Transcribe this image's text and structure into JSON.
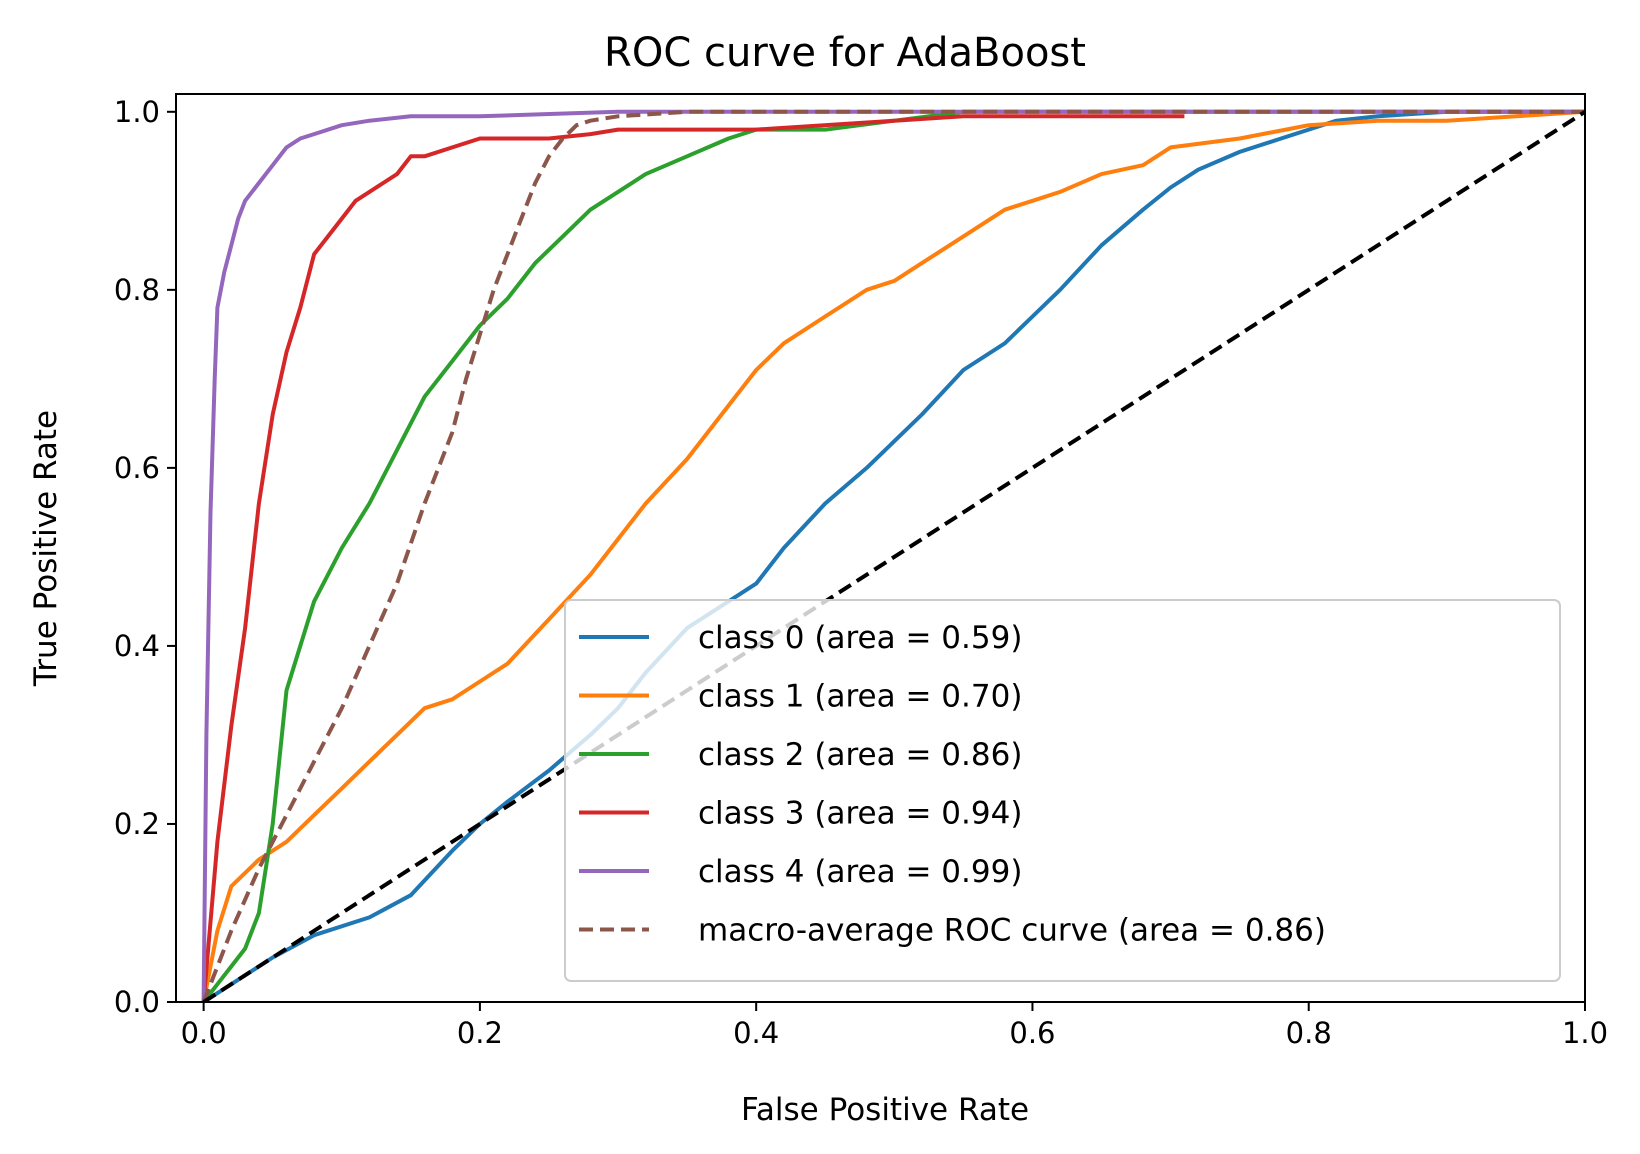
{
  "chart_data": {
    "type": "line",
    "title": "ROC curve for AdaBoost",
    "xlabel": "False Positive Rate",
    "ylabel": "True Positive Rate",
    "xlim": [
      -0.02,
      1.0
    ],
    "ylim": [
      0.0,
      1.02
    ],
    "xticks": [
      "0.0",
      "0.2",
      "0.4",
      "0.6",
      "0.8",
      "1.0"
    ],
    "yticks": [
      "0.0",
      "0.2",
      "0.4",
      "0.6",
      "0.8",
      "1.0"
    ],
    "grid": false,
    "legend_position": "lower-right",
    "series": [
      {
        "name": "class 0 (area = 0.59)",
        "color": "#1f77b4",
        "style": "solid",
        "x": [
          0.0,
          0.02,
          0.05,
          0.08,
          0.12,
          0.15,
          0.18,
          0.2,
          0.22,
          0.25,
          0.28,
          0.3,
          0.32,
          0.35,
          0.38,
          0.4,
          0.42,
          0.45,
          0.48,
          0.5,
          0.52,
          0.55,
          0.58,
          0.6,
          0.62,
          0.65,
          0.68,
          0.7,
          0.72,
          0.75,
          0.78,
          0.8,
          0.82,
          0.85,
          0.9,
          0.95,
          1.0
        ],
        "y": [
          0.0,
          0.02,
          0.05,
          0.075,
          0.095,
          0.12,
          0.17,
          0.2,
          0.225,
          0.26,
          0.3,
          0.33,
          0.37,
          0.42,
          0.45,
          0.47,
          0.51,
          0.56,
          0.6,
          0.63,
          0.66,
          0.71,
          0.74,
          0.77,
          0.8,
          0.85,
          0.89,
          0.915,
          0.935,
          0.955,
          0.97,
          0.98,
          0.99,
          0.995,
          1.0,
          1.0,
          1.0
        ]
      },
      {
        "name": "class 1 (area = 0.70)",
        "color": "#ff7f0e",
        "style": "solid",
        "x": [
          0.0,
          0.01,
          0.02,
          0.04,
          0.06,
          0.08,
          0.1,
          0.12,
          0.14,
          0.16,
          0.18,
          0.2,
          0.22,
          0.25,
          0.28,
          0.3,
          0.32,
          0.35,
          0.38,
          0.4,
          0.42,
          0.45,
          0.48,
          0.5,
          0.52,
          0.55,
          0.58,
          0.6,
          0.62,
          0.65,
          0.68,
          0.7,
          0.75,
          0.8,
          0.85,
          0.9,
          0.95,
          1.0
        ],
        "y": [
          0.0,
          0.08,
          0.13,
          0.16,
          0.18,
          0.21,
          0.24,
          0.27,
          0.3,
          0.33,
          0.34,
          0.36,
          0.38,
          0.43,
          0.48,
          0.52,
          0.56,
          0.61,
          0.67,
          0.71,
          0.74,
          0.77,
          0.8,
          0.81,
          0.83,
          0.86,
          0.89,
          0.9,
          0.91,
          0.93,
          0.94,
          0.96,
          0.97,
          0.985,
          0.99,
          0.99,
          0.995,
          1.0
        ]
      },
      {
        "name": "class 2 (area = 0.86)",
        "color": "#2ca02c",
        "style": "solid",
        "x": [
          0.0,
          0.01,
          0.02,
          0.03,
          0.04,
          0.05,
          0.06,
          0.07,
          0.08,
          0.1,
          0.12,
          0.14,
          0.16,
          0.18,
          0.2,
          0.22,
          0.24,
          0.26,
          0.28,
          0.3,
          0.32,
          0.35,
          0.38,
          0.4,
          0.45,
          0.5,
          0.55,
          0.6,
          0.7,
          0.8,
          1.0
        ],
        "y": [
          0.0,
          0.02,
          0.04,
          0.06,
          0.1,
          0.2,
          0.35,
          0.4,
          0.45,
          0.51,
          0.56,
          0.62,
          0.68,
          0.72,
          0.76,
          0.79,
          0.83,
          0.86,
          0.89,
          0.91,
          0.93,
          0.95,
          0.97,
          0.98,
          0.98,
          0.99,
          1.0,
          1.0,
          1.0,
          1.0,
          1.0
        ]
      },
      {
        "name": "class 3 (area = 0.94)",
        "color": "#d62728",
        "style": "solid",
        "x": [
          0.0,
          0.01,
          0.02,
          0.03,
          0.04,
          0.05,
          0.06,
          0.07,
          0.08,
          0.09,
          0.1,
          0.11,
          0.12,
          0.13,
          0.14,
          0.15,
          0.16,
          0.18,
          0.2,
          0.22,
          0.25,
          0.28,
          0.3,
          0.35,
          0.4,
          0.5,
          0.55,
          0.6,
          0.7,
          0.71
        ],
        "y": [
          0.0,
          0.18,
          0.31,
          0.42,
          0.56,
          0.66,
          0.73,
          0.78,
          0.84,
          0.86,
          0.88,
          0.9,
          0.91,
          0.92,
          0.93,
          0.95,
          0.95,
          0.96,
          0.97,
          0.97,
          0.97,
          0.975,
          0.98,
          0.98,
          0.98,
          0.99,
          0.995,
          0.995,
          0.995,
          0.995
        ]
      },
      {
        "name": "class 4 (area = 0.99)",
        "color": "#9467bd",
        "style": "solid",
        "x": [
          0.0,
          0.002,
          0.005,
          0.008,
          0.01,
          0.015,
          0.02,
          0.025,
          0.03,
          0.04,
          0.05,
          0.06,
          0.07,
          0.08,
          0.1,
          0.12,
          0.15,
          0.2,
          0.3,
          0.5,
          1.0
        ],
        "y": [
          0.0,
          0.3,
          0.55,
          0.7,
          0.78,
          0.82,
          0.85,
          0.88,
          0.9,
          0.92,
          0.94,
          0.96,
          0.97,
          0.975,
          0.985,
          0.99,
          0.995,
          0.995,
          1.0,
          1.0,
          1.0
        ]
      },
      {
        "name": "macro-average ROC curve (area = 0.86)",
        "color": "#8c564b",
        "style": "dashed",
        "x": [
          0.0,
          0.02,
          0.04,
          0.06,
          0.08,
          0.1,
          0.12,
          0.14,
          0.16,
          0.18,
          0.19,
          0.2,
          0.21,
          0.22,
          0.23,
          0.24,
          0.25,
          0.26,
          0.27,
          0.28,
          0.3,
          0.35,
          0.4,
          0.5,
          0.6,
          0.8,
          1.0
        ],
        "y": [
          0.0,
          0.08,
          0.15,
          0.21,
          0.27,
          0.33,
          0.4,
          0.47,
          0.56,
          0.64,
          0.7,
          0.75,
          0.8,
          0.84,
          0.88,
          0.92,
          0.95,
          0.97,
          0.985,
          0.99,
          0.995,
          1.0,
          1.0,
          1.0,
          1.0,
          1.0,
          1.0
        ]
      },
      {
        "name": "",
        "color": "#000000",
        "style": "dashed-diagonal",
        "x": [
          0.0,
          1.0
        ],
        "y": [
          0.0,
          1.0
        ]
      }
    ]
  }
}
